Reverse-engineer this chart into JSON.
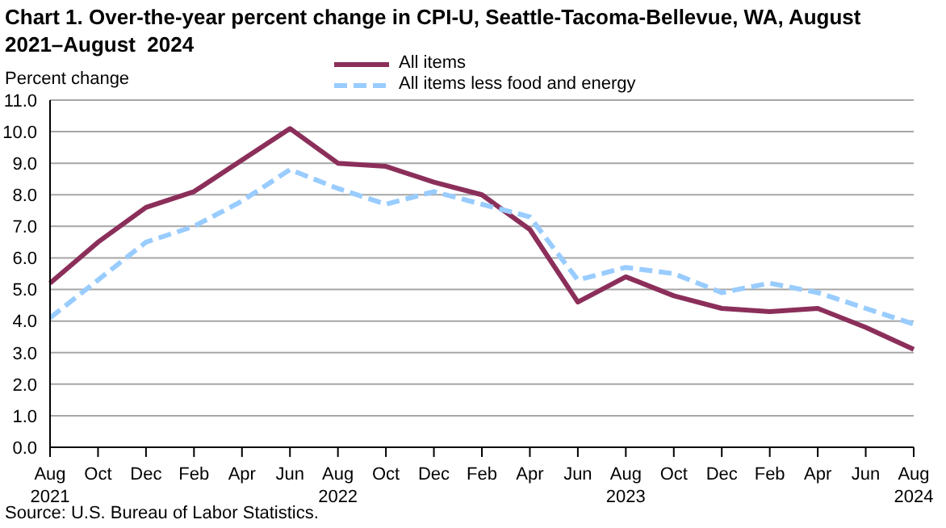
{
  "chart_data": {
    "type": "line",
    "title": "Chart 1. Over-the-year percent change in CPI-U, Seattle-Tacoma-Bellevue, WA, August 2021–August  2024",
    "ylabel": "Percent change",
    "categories": [
      "Aug 2021",
      "Oct",
      "Dec",
      "Feb",
      "Apr",
      "Jun",
      "Aug 2022",
      "Oct",
      "Dec",
      "Feb",
      "Apr",
      "Jun",
      "Aug 2023",
      "Oct",
      "Dec",
      "Feb",
      "Apr",
      "Jun",
      "Aug 2024"
    ],
    "series": [
      {
        "name": "All items",
        "color": "#8b2f5a",
        "line_style": "solid",
        "values": [
          5.2,
          6.5,
          7.6,
          8.1,
          9.1,
          10.1,
          9.0,
          8.9,
          8.4,
          8.0,
          6.9,
          4.6,
          5.4,
          4.8,
          4.4,
          4.3,
          4.4,
          3.8,
          3.1
        ]
      },
      {
        "name": "All items less food and energy",
        "color": "#99ccff",
        "line_style": "dashed",
        "values": [
          4.1,
          5.3,
          6.5,
          7.0,
          7.8,
          8.8,
          8.2,
          7.7,
          8.1,
          7.7,
          7.3,
          5.3,
          5.7,
          5.5,
          4.9,
          5.2,
          4.9,
          4.4,
          3.9
        ]
      }
    ],
    "ylim": [
      0,
      11
    ],
    "yticks": [
      {
        "value": 0,
        "label": "0.0"
      },
      {
        "value": 1,
        "label": "1.0"
      },
      {
        "value": 2,
        "label": "2.0"
      },
      {
        "value": 3,
        "label": "3.0"
      },
      {
        "value": 4,
        "label": "4.0"
      },
      {
        "value": 5,
        "label": "5.0"
      },
      {
        "value": 6,
        "label": "6.0"
      },
      {
        "value": 7,
        "label": "7.0"
      },
      {
        "value": 8,
        "label": "8.0"
      },
      {
        "value": 9,
        "label": "9.0"
      },
      {
        "value": 10,
        "label": "10.0"
      },
      {
        "value": 11,
        "label": "11.0"
      }
    ],
    "grid": "y",
    "legend": "top",
    "marker": "none",
    "annotations": [
      "Source: U.S. Bureau of Labor Statistics."
    ]
  }
}
